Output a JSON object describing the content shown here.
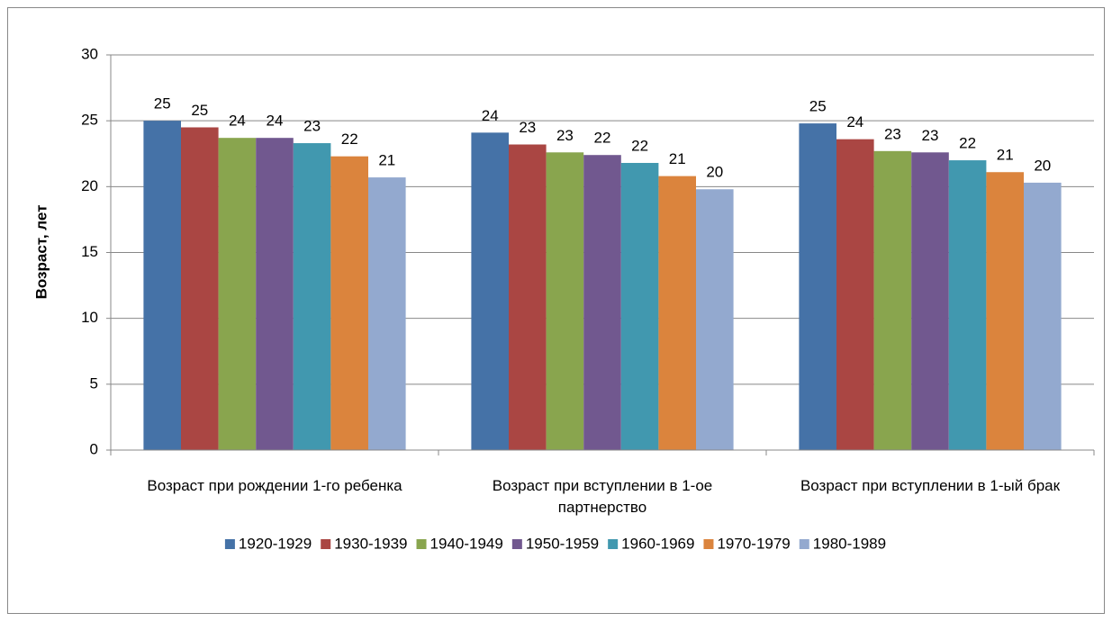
{
  "chart_data": {
    "type": "bar",
    "y_label": "Возраст, лет",
    "categories": [
      "Возраст  при рождении 1-го ребенка",
      "Возраст  при вступлении в 1-ое партнерство",
      "Возраст при вступлении в 1-ый брак"
    ],
    "series": [
      {
        "name": "1920-1929",
        "color": "#4572a7",
        "values": [
          25.0,
          24.1,
          24.8
        ],
        "value_labels": [
          "25",
          "24",
          "25"
        ]
      },
      {
        "name": "1930-1939",
        "color": "#aa4643",
        "values": [
          24.5,
          23.2,
          23.6
        ],
        "value_labels": [
          "25",
          "23",
          "24"
        ]
      },
      {
        "name": "1940-1949",
        "color": "#89a54e",
        "values": [
          23.7,
          22.6,
          22.7
        ],
        "value_labels": [
          "24",
          "23",
          "23"
        ]
      },
      {
        "name": "1950-1959",
        "color": "#71588f",
        "values": [
          23.7,
          22.4,
          22.6
        ],
        "value_labels": [
          "24",
          "22",
          "23"
        ]
      },
      {
        "name": "1960-1969",
        "color": "#4198af",
        "values": [
          23.3,
          21.8,
          22.0
        ],
        "value_labels": [
          "23",
          "22",
          "22"
        ]
      },
      {
        "name": "1970-1979",
        "color": "#db843d",
        "values": [
          22.3,
          20.8,
          21.1
        ],
        "value_labels": [
          "22",
          "21",
          "21"
        ]
      },
      {
        "name": "1980-1989",
        "color": "#93a9cf",
        "values": [
          20.7,
          19.8,
          20.3
        ],
        "value_labels": [
          "21",
          "20",
          "20"
        ]
      }
    ],
    "ylim": [
      0,
      30
    ],
    "yticks": [
      0,
      5,
      10,
      15,
      20,
      25,
      30
    ],
    "grid": true,
    "legend": "bottom"
  }
}
